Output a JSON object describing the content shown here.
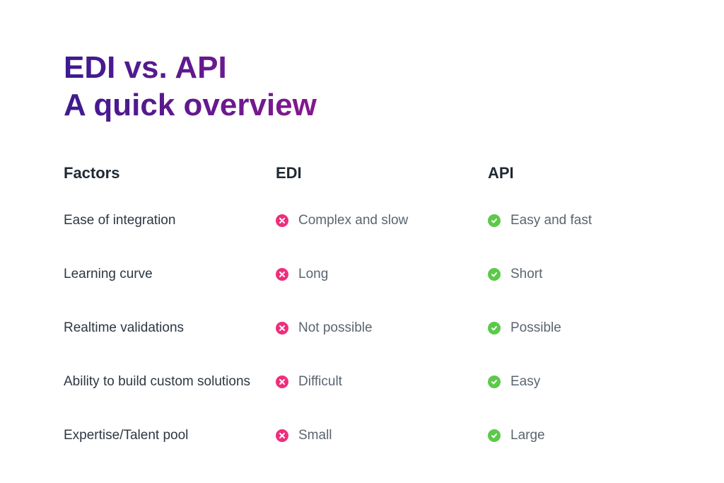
{
  "title": {
    "line1": "EDI vs. API",
    "line2": "A quick overview",
    "fontsize": 44,
    "fontweight": 800,
    "gradient_start": "#3c1a8f",
    "gradient_end": "#e9168c"
  },
  "headers": {
    "factors": "Factors",
    "edi": "EDI",
    "api": "API",
    "fontsize": 22,
    "color": "#1f2933"
  },
  "layout": {
    "col_factors_width": 300,
    "col_edi_width": 300,
    "col_api_width": 244,
    "row_gap": 36
  },
  "icons": {
    "negative_bg": "#ef2e7c",
    "negative_glyph": "#ffffff",
    "positive_bg": "#5cc94a",
    "positive_glyph": "#ffffff",
    "size": 18
  },
  "body_text": {
    "factor_color": "#2d3843",
    "factor_fontsize": 19,
    "value_color": "#5a6570",
    "value_fontsize": 19
  },
  "rows": [
    {
      "factor": "Ease of integration",
      "edi": "Complex and slow",
      "api": "Easy and fast"
    },
    {
      "factor": "Learning curve",
      "edi": "Long",
      "api": "Short"
    },
    {
      "factor": "Realtime validations",
      "edi": "Not possible",
      "api": "Possible"
    },
    {
      "factor": "Ability to build custom solutions",
      "edi": "Difficult",
      "api": "Easy"
    },
    {
      "factor": "Expertise/Talent pool",
      "edi": "Small",
      "api": "Large"
    }
  ]
}
